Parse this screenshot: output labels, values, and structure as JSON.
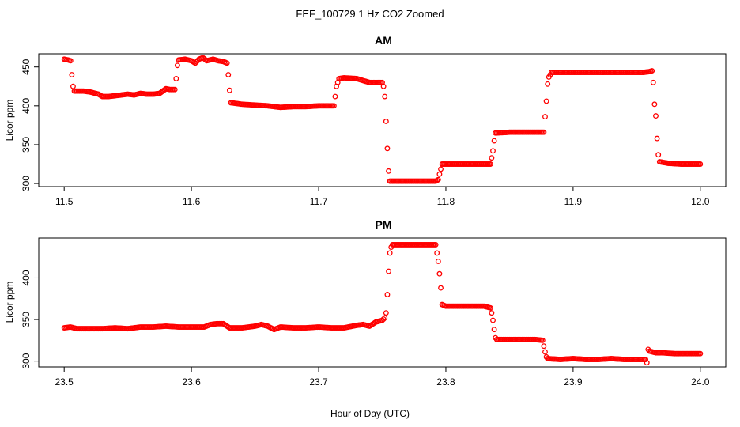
{
  "figure": {
    "title": "FEF_100729  1 Hz CO2 Zoomed",
    "xlabel": "Hour of Day (UTC)"
  },
  "colors": {
    "points": "#ff0000",
    "axes": "#000000",
    "background": "#ffffff"
  },
  "chart_data": [
    {
      "type": "scatter",
      "title": "AM",
      "ylabel": "Licor ppm",
      "xlim": [
        11.48,
        12.02
      ],
      "ylim": [
        296,
        467
      ],
      "xticks": [
        "11.5",
        "11.6",
        "11.7",
        "11.8",
        "11.9",
        "12.0"
      ],
      "yticks": [
        "300",
        "350",
        "400",
        "450"
      ],
      "series": [
        {
          "marker": "open-circle",
          "color": "#ff0000",
          "segments": [
            [
              11.5,
              460
            ],
            [
              11.503,
              459
            ],
            [
              11.505,
              458
            ],
            [
              11.506,
              440
            ],
            [
              11.507,
              425
            ],
            [
              11.508,
              419
            ],
            [
              11.515,
              419
            ],
            [
              11.52,
              418
            ],
            [
              11.527,
              415
            ],
            [
              11.53,
              412
            ],
            [
              11.535,
              412
            ],
            [
              11.54,
              413
            ],
            [
              11.545,
              414
            ],
            [
              11.55,
              415
            ],
            [
              11.555,
              414
            ],
            [
              11.56,
              416
            ],
            [
              11.565,
              415
            ],
            [
              11.57,
              415
            ],
            [
              11.575,
              416
            ],
            [
              11.58,
              422
            ],
            [
              11.583,
              421
            ],
            [
              11.587,
              421
            ],
            [
              11.588,
              435
            ],
            [
              11.589,
              452
            ],
            [
              11.59,
              459
            ],
            [
              11.595,
              460
            ],
            [
              11.6,
              458
            ],
            [
              11.603,
              455
            ],
            [
              11.606,
              460
            ],
            [
              11.609,
              462
            ],
            [
              11.612,
              458
            ],
            [
              11.617,
              460
            ],
            [
              11.621,
              458
            ],
            [
              11.625,
              457
            ],
            [
              11.628,
              455
            ],
            [
              11.629,
              440
            ],
            [
              11.63,
              420
            ],
            [
              11.631,
              404
            ],
            [
              11.64,
              402
            ],
            [
              11.65,
              401
            ],
            [
              11.66,
              400
            ],
            [
              11.67,
              398
            ],
            [
              11.68,
              399
            ],
            [
              11.69,
              399
            ],
            [
              11.7,
              400
            ],
            [
              11.71,
              400
            ],
            [
              11.712,
              400
            ],
            [
              11.713,
              412
            ],
            [
              11.714,
              425
            ],
            [
              11.716,
              435
            ],
            [
              11.72,
              436
            ],
            [
              11.73,
              435
            ],
            [
              11.74,
              430
            ],
            [
              11.75,
              430
            ],
            [
              11.751,
              425
            ],
            [
              11.752,
              412
            ],
            [
              11.753,
              380
            ],
            [
              11.754,
              345
            ],
            [
              11.755,
              316
            ],
            [
              11.756,
              303
            ],
            [
              11.765,
              303
            ],
            [
              11.775,
              303
            ],
            [
              11.785,
              303
            ],
            [
              11.792,
              303
            ],
            [
              11.794,
              305
            ],
            [
              11.795,
              312
            ],
            [
              11.797,
              325
            ],
            [
              11.81,
              325
            ],
            [
              11.82,
              325
            ],
            [
              11.835,
              325
            ],
            [
              11.836,
              333
            ],
            [
              11.837,
              342
            ],
            [
              11.838,
              355
            ],
            [
              11.839,
              365
            ],
            [
              11.85,
              366
            ],
            [
              11.86,
              366
            ],
            [
              11.87,
              366
            ],
            [
              11.877,
              366
            ],
            [
              11.878,
              386
            ],
            [
              11.879,
              406
            ],
            [
              11.88,
              428
            ],
            [
              11.881,
              437
            ],
            [
              11.883,
              443
            ],
            [
              11.9,
              443
            ],
            [
              11.92,
              443
            ],
            [
              11.94,
              443
            ],
            [
              11.955,
              443
            ],
            [
              11.96,
              444
            ],
            [
              11.962,
              445
            ],
            [
              11.963,
              430
            ],
            [
              11.964,
              402
            ],
            [
              11.965,
              387
            ],
            [
              11.966,
              358
            ],
            [
              11.967,
              337
            ],
            [
              11.968,
              328
            ],
            [
              11.975,
              326
            ],
            [
              11.985,
              325
            ],
            [
              12.0,
              325
            ]
          ]
        }
      ]
    },
    {
      "type": "scatter",
      "title": "PM",
      "ylabel": "Licor ppm",
      "xlim": [
        23.48,
        24.02
      ],
      "ylim": [
        293,
        448
      ],
      "xticks": [
        "23.5",
        "23.6",
        "23.7",
        "23.8",
        "23.9",
        "24.0"
      ],
      "yticks": [
        "300",
        "350",
        "400"
      ],
      "series": [
        {
          "marker": "open-circle",
          "color": "#ff0000",
          "segments": [
            [
              23.5,
              340
            ],
            [
              23.505,
              341
            ],
            [
              23.51,
              339
            ],
            [
              23.52,
              339
            ],
            [
              23.53,
              339
            ],
            [
              23.54,
              340
            ],
            [
              23.55,
              339
            ],
            [
              23.56,
              341
            ],
            [
              23.57,
              341
            ],
            [
              23.58,
              342
            ],
            [
              23.59,
              341
            ],
            [
              23.6,
              341
            ],
            [
              23.61,
              341
            ],
            [
              23.615,
              344
            ],
            [
              23.62,
              345
            ],
            [
              23.625,
              345
            ],
            [
              23.63,
              340
            ],
            [
              23.64,
              340
            ],
            [
              23.65,
              342
            ],
            [
              23.655,
              344
            ],
            [
              23.66,
              342
            ],
            [
              23.665,
              338
            ],
            [
              23.67,
              341
            ],
            [
              23.68,
              340
            ],
            [
              23.69,
              340
            ],
            [
              23.7,
              341
            ],
            [
              23.71,
              340
            ],
            [
              23.72,
              340
            ],
            [
              23.73,
              343
            ],
            [
              23.735,
              344
            ],
            [
              23.74,
              342
            ],
            [
              23.745,
              347
            ],
            [
              23.75,
              349
            ],
            [
              23.752,
              352
            ],
            [
              23.753,
              358
            ],
            [
              23.754,
              380
            ],
            [
              23.755,
              408
            ],
            [
              23.756,
              430
            ],
            [
              23.757,
              437
            ],
            [
              23.758,
              440
            ],
            [
              23.77,
              440
            ],
            [
              23.78,
              440
            ],
            [
              23.79,
              440
            ],
            [
              23.792,
              440
            ],
            [
              23.793,
              430
            ],
            [
              23.794,
              420
            ],
            [
              23.795,
              405
            ],
            [
              23.796,
              388
            ],
            [
              23.797,
              368
            ],
            [
              23.8,
              366
            ],
            [
              23.81,
              366
            ],
            [
              23.82,
              366
            ],
            [
              23.83,
              366
            ],
            [
              23.835,
              364
            ],
            [
              23.836,
              358
            ],
            [
              23.837,
              349
            ],
            [
              23.838,
              338
            ],
            [
              23.839,
              328
            ],
            [
              23.84,
              326
            ],
            [
              23.85,
              326
            ],
            [
              23.86,
              326
            ],
            [
              23.87,
              326
            ],
            [
              23.876,
              325
            ],
            [
              23.877,
              318
            ],
            [
              23.878,
              311
            ],
            [
              23.879,
              305
            ],
            [
              23.88,
              303
            ],
            [
              23.89,
              302
            ],
            [
              23.9,
              303
            ],
            [
              23.91,
              302
            ],
            [
              23.92,
              302
            ],
            [
              23.93,
              303
            ],
            [
              23.94,
              302
            ],
            [
              23.95,
              302
            ],
            [
              23.957,
              302
            ],
            [
              23.958,
              298
            ],
            [
              23.959,
              314
            ],
            [
              23.96,
              312
            ],
            [
              23.965,
              310
            ],
            [
              23.97,
              310
            ],
            [
              23.98,
              309
            ],
            [
              23.99,
              309
            ],
            [
              24.0,
              309
            ]
          ]
        }
      ]
    }
  ]
}
